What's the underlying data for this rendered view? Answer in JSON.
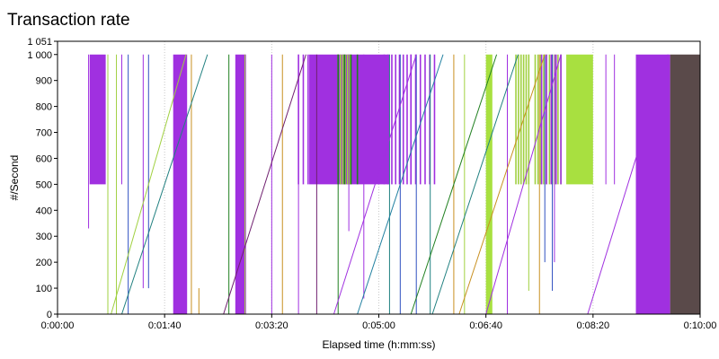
{
  "chart_data": {
    "type": "line",
    "title": "Transaction rate",
    "xlabel": "Elapsed time (h:mm:ss)",
    "ylabel": "#/Second",
    "x_unit": "seconds",
    "xlim": [
      0,
      600
    ],
    "ylim": [
      0,
      1051
    ],
    "y_ticks": [
      0,
      100,
      200,
      300,
      400,
      500,
      600,
      700,
      800,
      900,
      1000,
      1051
    ],
    "y_tick_labels": [
      "0",
      "100",
      "200",
      "300",
      "400",
      "500",
      "600",
      "700",
      "800",
      "900",
      "1 000",
      "1 051"
    ],
    "x_ticks": [
      0,
      100,
      200,
      300,
      400,
      500,
      600
    ],
    "x_tick_labels": [
      "0:00:00",
      "0:01:40",
      "0:03:20",
      "0:05:00",
      "0:06:40",
      "0:08:20",
      "0:10:00"
    ],
    "grid": "dotted-vertical",
    "legend": "none",
    "bands": [
      {
        "from": 30,
        "to": 45,
        "low": 500,
        "high": 1000,
        "color": "#a030e0"
      },
      {
        "from": 108,
        "to": 121,
        "low": 0,
        "high": 1000,
        "color": "#a030e0"
      },
      {
        "from": 166,
        "to": 176,
        "low": 0,
        "high": 1000,
        "color": "#a030e0"
      },
      {
        "from": 235,
        "to": 262,
        "low": 500,
        "high": 1000,
        "color": "#a030e0"
      },
      {
        "from": 262,
        "to": 310,
        "low": 500,
        "high": 1000,
        "color": "#a030e0"
      },
      {
        "from": 400,
        "to": 406,
        "low": 0,
        "high": 1000,
        "color": "#a8e040"
      },
      {
        "from": 475,
        "to": 500,
        "low": 500,
        "high": 1000,
        "color": "#a8e040"
      },
      {
        "from": 540,
        "to": 572,
        "low": 0,
        "high": 1000,
        "color": "#a030e0"
      },
      {
        "from": 572,
        "to": 600,
        "low": 0,
        "high": 1000,
        "color": "#5a4a4a"
      }
    ],
    "ramps": [
      {
        "x0": 50,
        "x1": 120,
        "y0": 0,
        "y1": 1000,
        "color": "#a0d040"
      },
      {
        "x0": 60,
        "x1": 140,
        "y0": 0,
        "y1": 1000,
        "color": "#208080"
      },
      {
        "x0": 155,
        "x1": 232,
        "y0": 0,
        "y1": 1000,
        "color": "#702070"
      },
      {
        "x0": 258,
        "x1": 335,
        "y0": 0,
        "y1": 1000,
        "color": "#a030e0"
      },
      {
        "x0": 280,
        "x1": 360,
        "y0": 0,
        "y1": 1000,
        "color": "#2080a0"
      },
      {
        "x0": 330,
        "x1": 410,
        "y0": 0,
        "y1": 1000,
        "color": "#208020"
      },
      {
        "x0": 350,
        "x1": 430,
        "y0": 0,
        "y1": 1000,
        "color": "#208080"
      },
      {
        "x0": 375,
        "x1": 455,
        "y0": 0,
        "y1": 1000,
        "color": "#c89020"
      },
      {
        "x0": 400,
        "x1": 470,
        "y0": 0,
        "y1": 1000,
        "color": "#a030e0"
      },
      {
        "x0": 495,
        "x1": 570,
        "y0": 0,
        "y1": 1000,
        "color": "#a030e0"
      }
    ],
    "spikes": [
      {
        "x": 29,
        "low": 330,
        "high": 1000,
        "color": "#a030e0"
      },
      {
        "x": 47,
        "low": 0,
        "high": 1000,
        "color": "#a0d040"
      },
      {
        "x": 55,
        "low": 0,
        "high": 1000,
        "color": "#a0d040"
      },
      {
        "x": 60,
        "low": 500,
        "high": 1000,
        "color": "#a030e0"
      },
      {
        "x": 66,
        "low": 0,
        "high": 1000,
        "color": "#3050c0"
      },
      {
        "x": 80,
        "low": 100,
        "high": 1000,
        "color": "#a030e0"
      },
      {
        "x": 85,
        "low": 100,
        "high": 1000,
        "color": "#3050c0"
      },
      {
        "x": 125,
        "low": 0,
        "high": 1000,
        "color": "#c89020"
      },
      {
        "x": 132,
        "low": 0,
        "high": 100,
        "color": "#c89020"
      },
      {
        "x": 160,
        "low": 0,
        "high": 1000,
        "color": "#208020"
      },
      {
        "x": 175,
        "low": 0,
        "high": 1000,
        "color": "#a0d040"
      },
      {
        "x": 200,
        "low": 0,
        "high": 1000,
        "color": "#a030e0"
      },
      {
        "x": 210,
        "low": 0,
        "high": 1000,
        "color": "#c89020"
      },
      {
        "x": 225,
        "low": 0,
        "high": 1000,
        "color": "#a030e0"
      },
      {
        "x": 242,
        "low": 0,
        "high": 1000,
        "color": "#702070"
      },
      {
        "x": 262,
        "low": 0,
        "high": 1000,
        "color": "#208020"
      },
      {
        "x": 272,
        "low": 320,
        "high": 1000,
        "color": "#a030e0"
      },
      {
        "x": 286,
        "low": 60,
        "high": 1000,
        "color": "#a030e0"
      },
      {
        "x": 310,
        "low": 0,
        "high": 1000,
        "color": "#208080"
      },
      {
        "x": 320,
        "low": 0,
        "high": 1000,
        "color": "#3050c0"
      },
      {
        "x": 335,
        "low": 0,
        "high": 1000,
        "color": "#3050c0"
      },
      {
        "x": 348,
        "low": 0,
        "high": 1000,
        "color": "#208080"
      },
      {
        "x": 370,
        "low": 0,
        "high": 1000,
        "color": "#c89020"
      },
      {
        "x": 380,
        "low": 0,
        "high": 1000,
        "color": "#a0d040"
      },
      {
        "x": 420,
        "low": 0,
        "high": 1000,
        "color": "#a030e0"
      },
      {
        "x": 440,
        "low": 90,
        "high": 1000,
        "color": "#a0d040"
      },
      {
        "x": 450,
        "low": 0,
        "high": 1000,
        "color": "#c89020"
      },
      {
        "x": 455,
        "low": 200,
        "high": 1000,
        "color": "#3050c0"
      },
      {
        "x": 462,
        "low": 90,
        "high": 1000,
        "color": "#3050c0"
      },
      {
        "x": 464,
        "low": 200,
        "high": 1000,
        "color": "#a030e0"
      },
      {
        "x": 512,
        "low": 500,
        "high": 1000,
        "color": "#a030e0"
      },
      {
        "x": 520,
        "low": 500,
        "high": 1000,
        "color": "#a030e0"
      }
    ],
    "bursts": [
      {
        "from": 225,
        "to": 234,
        "low": 500,
        "high": 1000,
        "count": 3,
        "color": "#a030e0"
      },
      {
        "from": 262,
        "to": 273,
        "low": 500,
        "high": 1000,
        "count": 6,
        "color": "#a0d040"
      },
      {
        "from": 262,
        "to": 280,
        "low": 500,
        "high": 1000,
        "count": 4,
        "color": "#208020"
      },
      {
        "from": 305,
        "to": 330,
        "low": 500,
        "high": 1000,
        "count": 8,
        "color": "#a030e0"
      },
      {
        "from": 330,
        "to": 352,
        "low": 500,
        "high": 1000,
        "count": 6,
        "color": "#a030e0"
      },
      {
        "from": 428,
        "to": 440,
        "low": 500,
        "high": 1000,
        "count": 6,
        "color": "#a0d040"
      },
      {
        "from": 446,
        "to": 470,
        "low": 500,
        "high": 1000,
        "count": 10,
        "color": "#a0d040"
      },
      {
        "from": 452,
        "to": 470,
        "low": 500,
        "high": 1000,
        "count": 5,
        "color": "#a030e0"
      }
    ]
  }
}
